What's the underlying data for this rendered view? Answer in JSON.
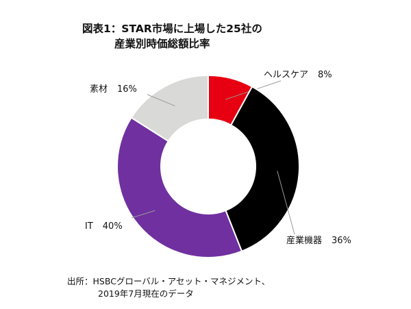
{
  "title": {
    "line1": "図表1：STAR市場に上場した25社の",
    "line2": "産業別時価総額比率"
  },
  "chart_data": {
    "type": "pie",
    "donut": true,
    "slices": [
      {
        "label": "ヘルスケア",
        "value": 8,
        "display": "8%",
        "color": "#e60012"
      },
      {
        "label": "産業機器",
        "value": 36,
        "display": "36%",
        "color": "#000000"
      },
      {
        "label": "IT",
        "value": 40,
        "display": "40%",
        "color": "#7030a0"
      },
      {
        "label": "素材",
        "value": 16,
        "display": "16%",
        "color": "#d9d9d7"
      }
    ],
    "legend": "none"
  },
  "source": {
    "line1": "出所：HSBCグローバル・アセット・マネジメント、",
    "line2": "2019年7月現在のデータ"
  }
}
